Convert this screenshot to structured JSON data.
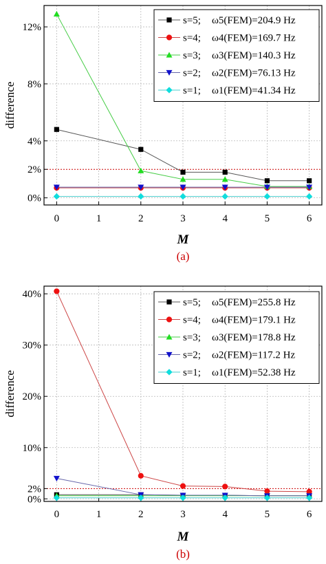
{
  "chart_data": [
    {
      "type": "line",
      "caption": "(a)",
      "xlabel": "M",
      "ylabel": "difference",
      "xlim": [
        -0.3,
        6.3
      ],
      "ylim": [
        -0.5,
        13.5
      ],
      "xticks": [
        "0",
        "1",
        "2",
        "3",
        "4",
        "5",
        "6"
      ],
      "yticks": [
        {
          "value": 0,
          "label": "0%",
          "color": "#000000"
        },
        {
          "value": 2,
          "label": "2%",
          "color": "#cc0000"
        },
        {
          "value": 4,
          "label": "4%",
          "color": "#000000"
        },
        {
          "value": 8,
          "label": "8%",
          "color": "#000000"
        },
        {
          "value": 12,
          "label": "12%",
          "color": "#000000"
        }
      ],
      "grid": true,
      "reference_line": {
        "value": 2,
        "color": "#cc0000"
      },
      "legend_position": "top-right",
      "x": [
        0,
        2,
        3,
        4,
        5,
        6
      ],
      "series": [
        {
          "s_label": "s=5;",
          "freq_label": "ω5(FEM)=204.9 Hz",
          "color": "#000000",
          "line_color": "#555555",
          "marker": "square",
          "values": [
            4.8,
            3.4,
            1.8,
            1.8,
            1.2,
            1.2
          ]
        },
        {
          "s_label": "s=4;",
          "freq_label": "ω4(FEM)=169.7 Hz",
          "color": "#ee1111",
          "line_color": "#cc4444",
          "marker": "circle",
          "values": [
            0.7,
            0.7,
            0.7,
            0.7,
            0.7,
            0.7
          ]
        },
        {
          "s_label": "s=3;",
          "freq_label": "ω3(FEM)=140.3 Hz",
          "color": "#22dd22",
          "line_color": "#44cc44",
          "marker": "triangle-up",
          "values": [
            12.9,
            1.9,
            1.3,
            1.3,
            0.8,
            0.8
          ]
        },
        {
          "s_label": "s=2;",
          "freq_label": "ω2(FEM)=76.13 Hz",
          "color": "#1111cc",
          "line_color": "#6666aa",
          "marker": "triangle-down",
          "values": [
            0.75,
            0.75,
            0.75,
            0.75,
            0.75,
            0.75
          ]
        },
        {
          "s_label": "s=1;",
          "freq_label": "ω1(FEM)=41.34 Hz",
          "color": "#11dddd",
          "line_color": "#44cccc",
          "marker": "diamond",
          "values": [
            0.1,
            0.1,
            0.1,
            0.1,
            0.1,
            0.1
          ]
        }
      ]
    },
    {
      "type": "line",
      "caption": "(b)",
      "xlabel": "M",
      "ylabel": "difference",
      "xlim": [
        -0.3,
        6.3
      ],
      "ylim": [
        -0.5,
        41.5
      ],
      "xticks": [
        "0",
        "1",
        "2",
        "3",
        "4",
        "5",
        "6"
      ],
      "yticks": [
        {
          "value": 0,
          "label": "0%",
          "color": "#000000"
        },
        {
          "value": 2,
          "label": "2%",
          "color": "#cc0000"
        },
        {
          "value": 10,
          "label": "10%",
          "color": "#000000"
        },
        {
          "value": 20,
          "label": "20%",
          "color": "#000000"
        },
        {
          "value": 30,
          "label": "30%",
          "color": "#000000"
        },
        {
          "value": 40,
          "label": "40%",
          "color": "#000000"
        }
      ],
      "grid": true,
      "reference_line": {
        "value": 2,
        "color": "#cc0000"
      },
      "legend_position": "top-right",
      "x": [
        0,
        2,
        3,
        4,
        5,
        6
      ],
      "series": [
        {
          "s_label": "s=5;",
          "freq_label": "ω5(FEM)=255.8 Hz",
          "color": "#000000",
          "line_color": "#555555",
          "marker": "square",
          "values": [
            0.8,
            0.8,
            0.7,
            0.7,
            0.6,
            0.6
          ]
        },
        {
          "s_label": "s=4;",
          "freq_label": "ω4(FEM)=179.1 Hz",
          "color": "#ee1111",
          "line_color": "#cc4444",
          "marker": "circle",
          "values": [
            40.5,
            4.5,
            2.5,
            2.4,
            1.5,
            1.4
          ]
        },
        {
          "s_label": "s=3;",
          "freq_label": "ω3(FEM)=178.8 Hz",
          "color": "#22dd22",
          "line_color": "#44cc44",
          "marker": "triangle-up",
          "values": [
            0.6,
            0.6,
            0.6,
            0.6,
            0.6,
            0.6
          ]
        },
        {
          "s_label": "s=2;",
          "freq_label": "ω2(FEM)=117.2 Hz",
          "color": "#1111cc",
          "line_color": "#6666aa",
          "marker": "triangle-down",
          "values": [
            4.0,
            0.8,
            0.7,
            0.7,
            0.6,
            0.6
          ]
        },
        {
          "s_label": "s=1;",
          "freq_label": "ω1(FEM)=52.38 Hz",
          "color": "#11dddd",
          "line_color": "#44cccc",
          "marker": "diamond",
          "values": [
            0.2,
            0.2,
            0.2,
            0.2,
            0.2,
            0.2
          ]
        }
      ]
    }
  ]
}
